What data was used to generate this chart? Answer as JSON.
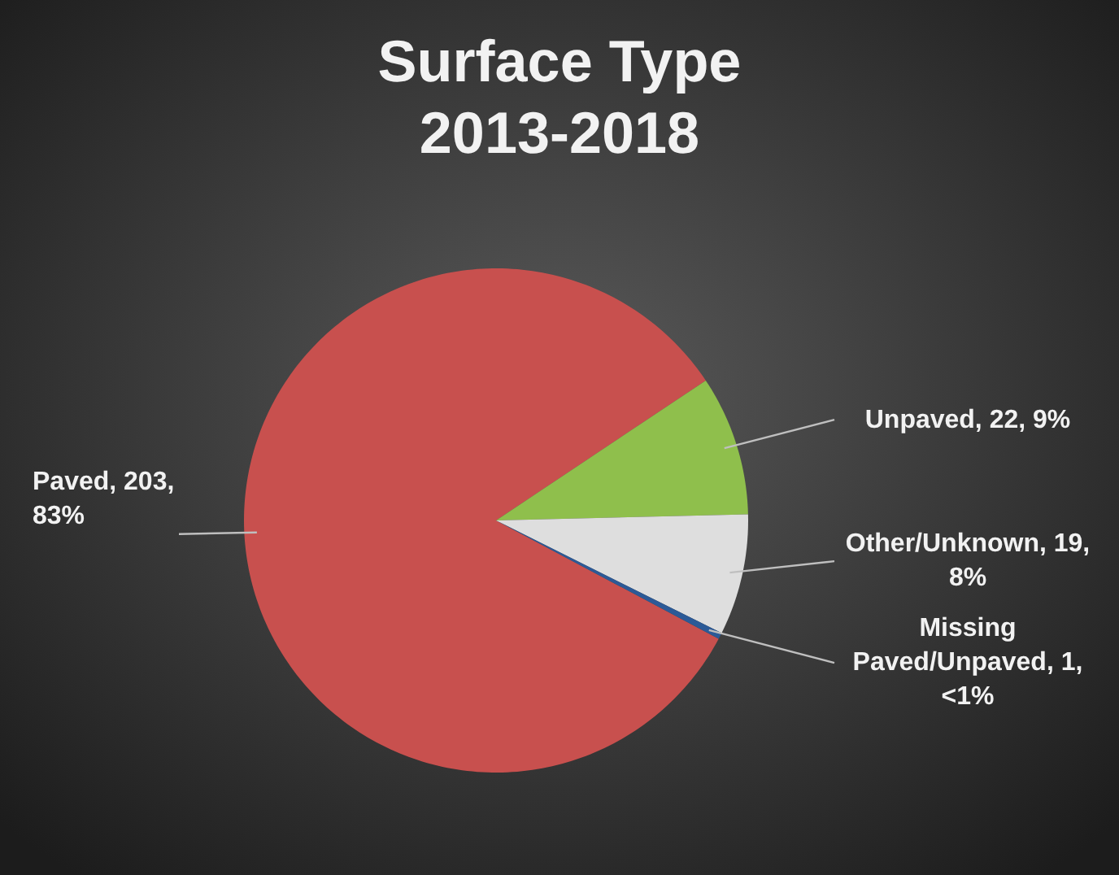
{
  "chart_data": {
    "type": "pie",
    "title": "Surface Type\n2013-2018",
    "categories": [
      "Paved",
      "Unpaved",
      "Other/Unknown",
      "Missing Paved/Unpaved"
    ],
    "values": [
      203,
      22,
      19,
      1
    ],
    "value_labels": [
      "203, 83%",
      "22, 9%",
      "19, 8%",
      "1, <1%"
    ],
    "colors": [
      "#c8504e",
      "#8fbf4c",
      "#dedede",
      "#2c5a97"
    ]
  }
}
